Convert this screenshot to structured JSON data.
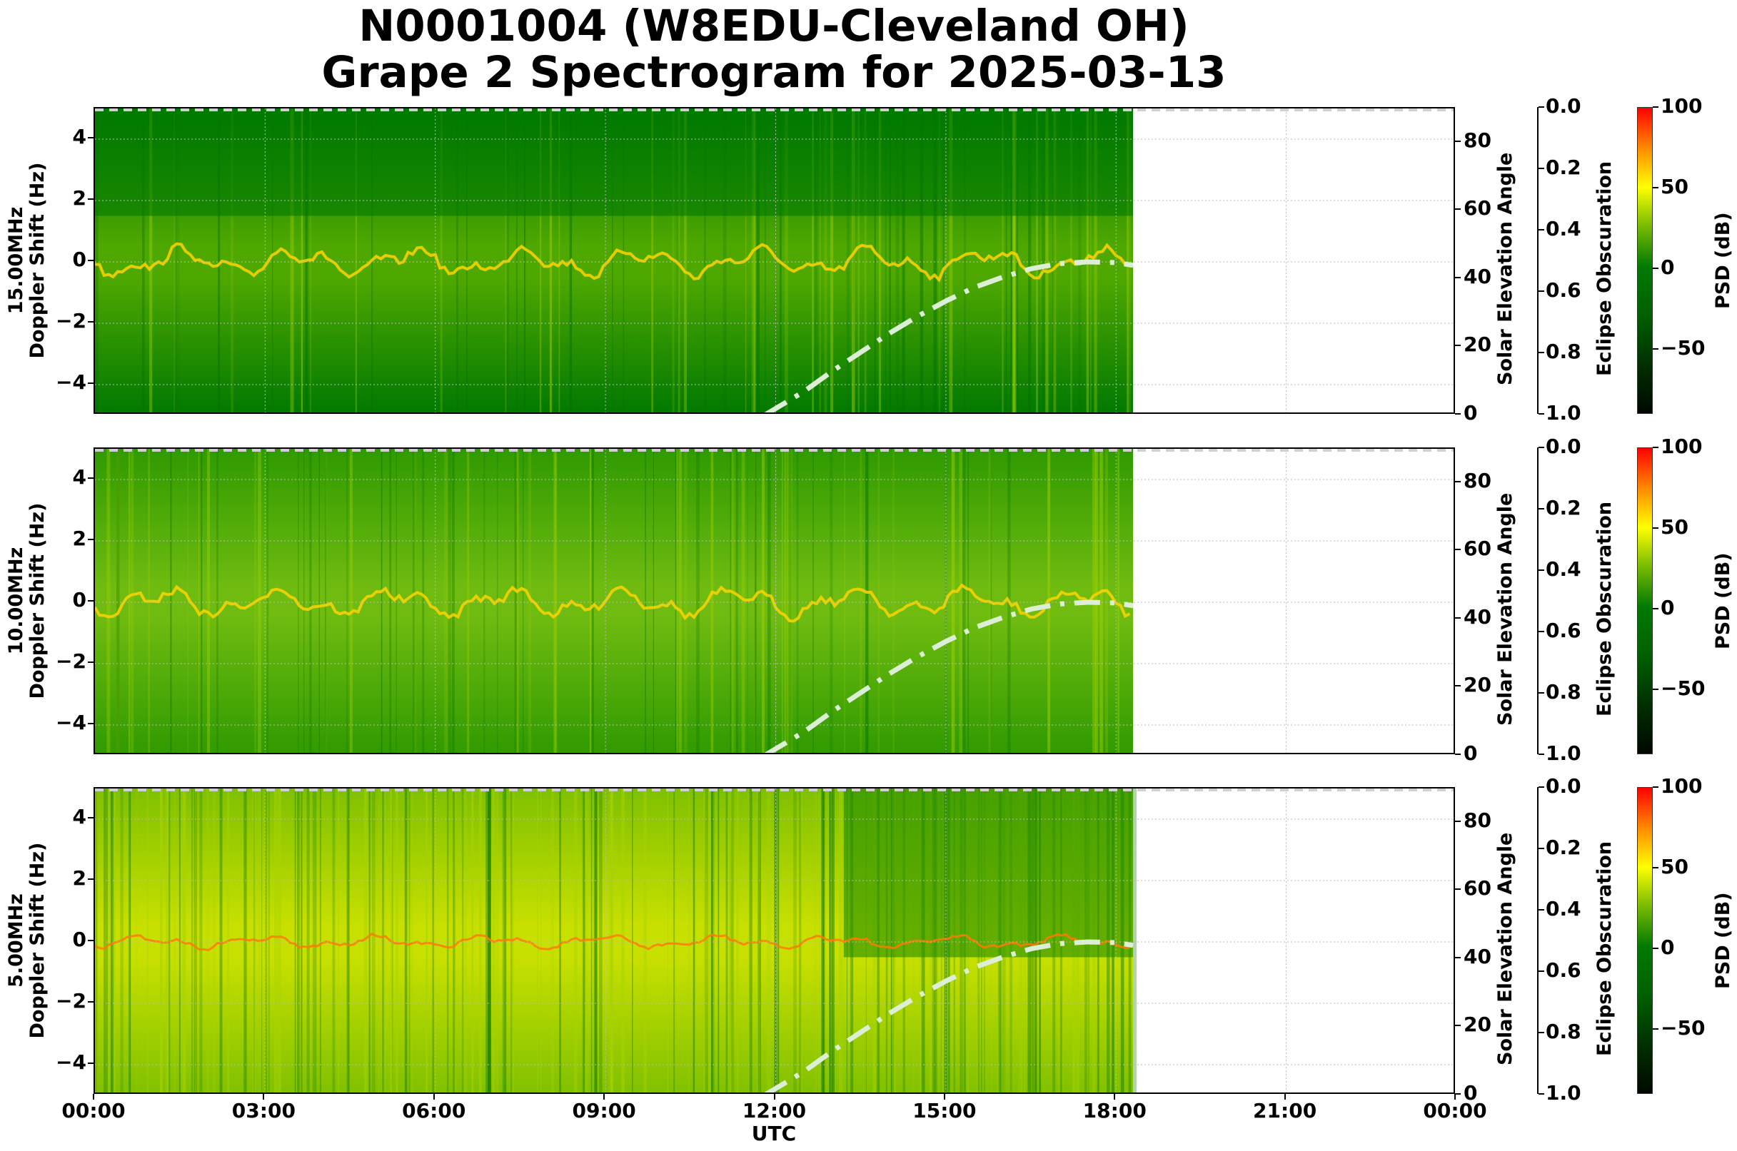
{
  "title": {
    "line1": "N0001004 (W8EDU-Cleveland OH)",
    "line2": "Grape 2 Spectrogram for 2025-03-13"
  },
  "x_axis": {
    "label": "UTC",
    "ticks": [
      "00:00",
      "03:00",
      "06:00",
      "09:00",
      "12:00",
      "15:00",
      "18:00",
      "21:00",
      "00:00"
    ]
  },
  "panels": [
    {
      "id": "15mhz",
      "ylabel_line1": "15.00MHz",
      "ylabel_line2": "Doppler Shift (Hz)",
      "yticks": [
        "4",
        "2",
        "0",
        "−2",
        "−4"
      ],
      "solar_label": "Solar Elevation Angle",
      "solar_ticks": [
        "80",
        "60",
        "40",
        "20",
        "0"
      ],
      "eclipse_label": "Eclipse Obscuration",
      "eclipse_ticks": [
        "0.0",
        "0.2",
        "0.4",
        "0.6",
        "0.8",
        "1.0"
      ],
      "cbar_label": "PSD (dB)",
      "cbar_ticks": [
        "100",
        "50",
        "0",
        "−50"
      ]
    },
    {
      "id": "10mhz",
      "ylabel_line1": "10.00MHz",
      "ylabel_line2": "Doppler Shift (Hz)",
      "yticks": [
        "4",
        "2",
        "0",
        "−2",
        "−4"
      ],
      "solar_label": "Solar Elevation Angle",
      "solar_ticks": [
        "80",
        "60",
        "40",
        "20",
        "0"
      ],
      "eclipse_label": "Eclipse Obscuration",
      "eclipse_ticks": [
        "0.0",
        "0.2",
        "0.4",
        "0.6",
        "0.8",
        "1.0"
      ],
      "cbar_label": "PSD (dB)",
      "cbar_ticks": [
        "100",
        "50",
        "0",
        "−50"
      ]
    },
    {
      "id": "5mhz",
      "ylabel_line1": "5.00MHz",
      "ylabel_line2": "Doppler Shift (Hz)",
      "yticks": [
        "4",
        "2",
        "0",
        "−2",
        "−4"
      ],
      "solar_label": "Solar Elevation Angle",
      "solar_ticks": [
        "80",
        "60",
        "40",
        "20",
        "0"
      ],
      "eclipse_label": "Eclipse Obscuration",
      "eclipse_ticks": [
        "0.0",
        "0.2",
        "0.4",
        "0.6",
        "0.8",
        "1.0"
      ],
      "cbar_label": "PSD (dB)",
      "cbar_ticks": [
        "100",
        "50",
        "0",
        "−50"
      ]
    }
  ],
  "colors": {
    "background_green": "#007a00",
    "signal_yellow": "#ffff00",
    "peak_red": "#ff3000",
    "solar_curve": "#d8ecd0",
    "grid": "#bbbbbb"
  },
  "chart_data": {
    "type": "heatmap",
    "title": "N0001004 (W8EDU-Cleveland OH) Grape 2 Spectrogram for 2025-03-13",
    "xlabel": "UTC",
    "x_ticks": [
      "00:00",
      "03:00",
      "06:00",
      "09:00",
      "12:00",
      "15:00",
      "18:00",
      "21:00",
      "00:00"
    ],
    "xlim_hours": [
      0,
      24
    ],
    "data_end_hours": 18.3,
    "ylabel": "Doppler Shift (Hz)",
    "ylim": [
      -5,
      5
    ],
    "y_ticks": [
      -4,
      -2,
      0,
      2,
      4
    ],
    "grid": true,
    "subplots": [
      "15.00MHz",
      "10.00MHz",
      "5.00MHz"
    ],
    "colorbar": {
      "label": "PSD (dB)",
      "range": [
        -90,
        100
      ],
      "ticks": [
        -50,
        0,
        50,
        100
      ],
      "colormap": "black-green-yellow-red"
    },
    "secondary_axes": [
      {
        "label": "Solar Elevation Angle",
        "range": [
          0,
          90
        ],
        "ticks": [
          0,
          20,
          40,
          60,
          80
        ]
      },
      {
        "label": "Eclipse Obscuration",
        "range": [
          1.0,
          0.0
        ],
        "ticks": [
          0.0,
          0.2,
          0.4,
          0.6,
          0.8,
          1.0
        ],
        "value": 0.0
      }
    ],
    "series": [
      {
        "name": "Solar Elevation Angle",
        "style": "dash-dot",
        "x_hours": [
          11.8,
          12.5,
          13.0,
          13.5,
          14.0,
          14.5,
          15.0,
          15.5,
          16.0,
          16.5,
          17.0,
          17.5,
          18.0,
          18.3
        ],
        "values": [
          0,
          7,
          13,
          18.5,
          24,
          29,
          33.5,
          37.5,
          40.5,
          43,
          44.5,
          45,
          44.8,
          44
        ]
      },
      {
        "name": "Eclipse Obscuration",
        "style": "dashed",
        "x_hours": [
          0,
          24
        ],
        "values": [
          0,
          0
        ]
      }
    ]
  }
}
